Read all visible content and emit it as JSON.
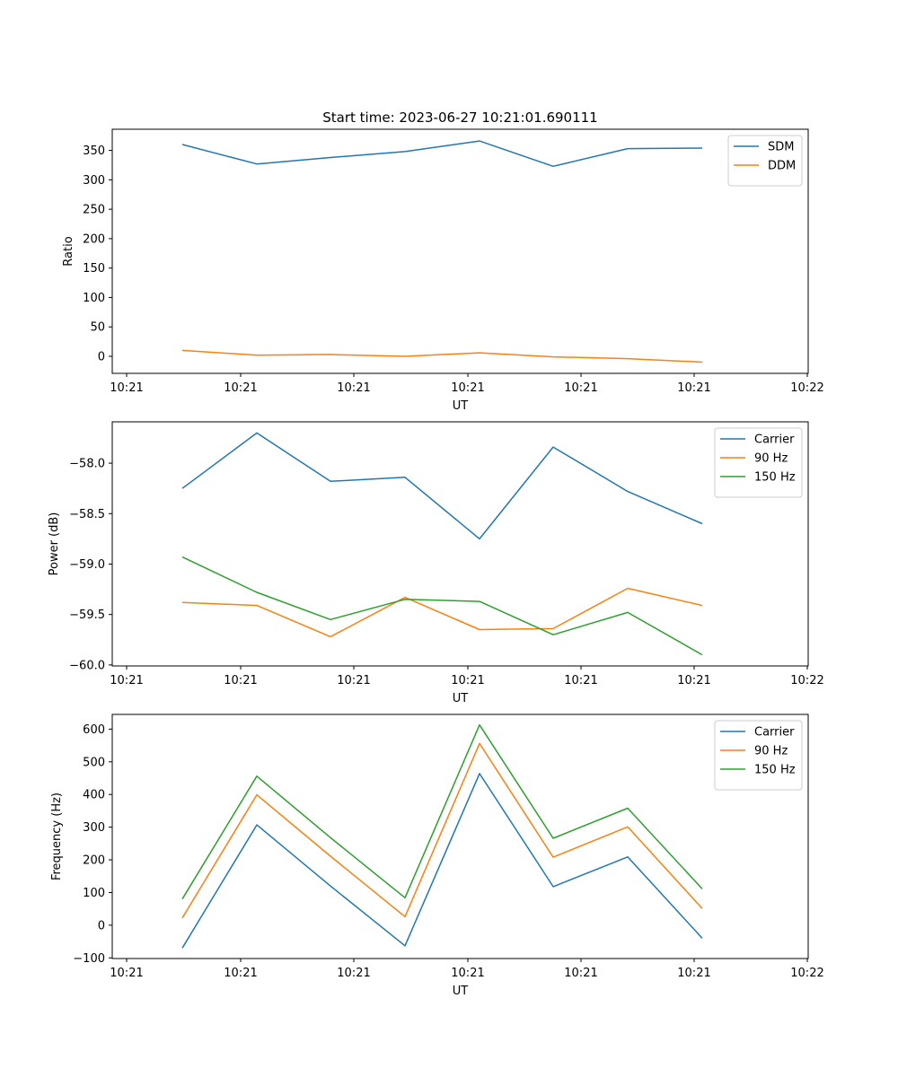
{
  "chart_data": [
    {
      "type": "line",
      "title": "Start time: 2023-06-27 10:21:01.690111",
      "xlabel": "UT",
      "ylabel": "Ratio",
      "x_tick_labels": [
        "10:21",
        "10:21",
        "10:21",
        "10:21",
        "10:21",
        "10:21",
        "10:22"
      ],
      "y_ticks": [
        0,
        50,
        100,
        150,
        200,
        250,
        300,
        350
      ],
      "ylim": [
        -29,
        386
      ],
      "legend_position": "top-right",
      "grid": false,
      "series": [
        {
          "name": "SDM",
          "color": "#1f77b4",
          "values": [
            360,
            327,
            338,
            348,
            366,
            323,
            353,
            354
          ]
        },
        {
          "name": "DDM",
          "color": "#ff7f0e",
          "values": [
            10,
            2,
            3,
            0,
            6,
            -1,
            -4,
            -10
          ]
        }
      ]
    },
    {
      "type": "line",
      "title": "",
      "xlabel": "UT",
      "ylabel": "Power (dB)",
      "x_tick_labels": [
        "10:21",
        "10:21",
        "10:21",
        "10:21",
        "10:21",
        "10:21",
        "10:22"
      ],
      "y_ticks": [
        -60.0,
        -59.5,
        -59.0,
        -58.5,
        -58.0
      ],
      "y_tick_labels": [
        "−60.0",
        "−59.5",
        "−59.0",
        "−58.5",
        "−58.0"
      ],
      "ylim": [
        -60.01,
        -57.59
      ],
      "legend_position": "top-right",
      "grid": false,
      "series": [
        {
          "name": "Carrier",
          "color": "#1f77b4",
          "values": [
            -58.25,
            -57.7,
            -58.18,
            -58.14,
            -58.75,
            -57.84,
            -58.28,
            -58.6
          ]
        },
        {
          "name": "90 Hz",
          "color": "#ff7f0e",
          "values": [
            -59.38,
            -59.41,
            -59.72,
            -59.33,
            -59.65,
            -59.64,
            -59.24,
            -59.41
          ]
        },
        {
          "name": "150 Hz",
          "color": "#2ca02c",
          "values": [
            -58.93,
            -59.28,
            -59.55,
            -59.35,
            -59.37,
            -59.7,
            -59.48,
            -59.9
          ]
        }
      ]
    },
    {
      "type": "line",
      "title": "",
      "xlabel": "UT",
      "ylabel": "Frequency (Hz)",
      "x_tick_labels": [
        "10:21",
        "10:21",
        "10:21",
        "10:21",
        "10:21",
        "10:21",
        "10:22"
      ],
      "y_ticks": [
        -100,
        0,
        100,
        200,
        300,
        400,
        500,
        600
      ],
      "y_tick_labels": [
        "−100",
        "0",
        "100",
        "200",
        "300",
        "400",
        "500",
        "600"
      ],
      "ylim": [
        -102,
        645
      ],
      "legend_position": "top-right",
      "grid": false,
      "series": [
        {
          "name": "Carrier",
          "color": "#1f77b4",
          "values": [
            -70,
            307,
            120,
            -63,
            464,
            118,
            209,
            -40
          ]
        },
        {
          "name": "90 Hz",
          "color": "#ff7f0e",
          "values": [
            22,
            399,
            211,
            26,
            556,
            208,
            301,
            51
          ]
        },
        {
          "name": "150 Hz",
          "color": "#2ca02c",
          "values": [
            80,
            456,
            268,
            84,
            613,
            266,
            358,
            111
          ]
        }
      ]
    }
  ]
}
